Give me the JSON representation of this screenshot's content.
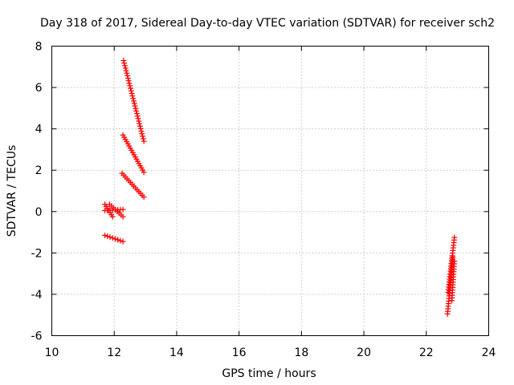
{
  "chart_data": {
    "type": "scatter",
    "title": "Day 318 of 2017, Sidereal Day-to-day VTEC variation (SDTVAR) for receiver sch2",
    "xlabel": "GPS time / hours",
    "ylabel": "SDTVAR / TECUs",
    "xlim": [
      10,
      24
    ],
    "ylim": [
      -6,
      8
    ],
    "xticks": [
      10,
      12,
      14,
      16,
      18,
      20,
      22,
      24
    ],
    "yticks": [
      -6,
      -4,
      -2,
      0,
      2,
      4,
      6,
      8
    ],
    "grid": true,
    "marker": "+",
    "series": [
      {
        "name": "SDTVAR",
        "color": "#ff0000",
        "tracks": [
          {
            "x": [
              12.3,
              12.95
            ],
            "y": [
              7.3,
              3.4
            ]
          },
          {
            "x": [
              12.28,
              12.95
            ],
            "y": [
              3.7,
              1.9
            ]
          },
          {
            "x": [
              12.25,
              12.95
            ],
            "y": [
              1.85,
              0.7
            ]
          },
          {
            "x": [
              11.7,
              11.95
            ],
            "y": [
              0.35,
              -0.25
            ]
          },
          {
            "x": [
              11.85,
              12.28
            ],
            "y": [
              0.35,
              -0.25
            ]
          },
          {
            "x": [
              11.7,
              12.28
            ],
            "y": [
              0.05,
              0.1
            ]
          },
          {
            "x": [
              11.7,
              12.28
            ],
            "y": [
              -1.15,
              -1.45
            ]
          },
          {
            "x": [
              22.68,
              22.85
            ],
            "y": [
              -4.95,
              -2.2
            ]
          },
          {
            "x": [
              22.7,
              22.9
            ],
            "y": [
              -3.9,
              -1.25
            ]
          },
          {
            "x": [
              22.82,
              22.9
            ],
            "y": [
              -4.3,
              -2.4
            ]
          }
        ]
      }
    ]
  }
}
